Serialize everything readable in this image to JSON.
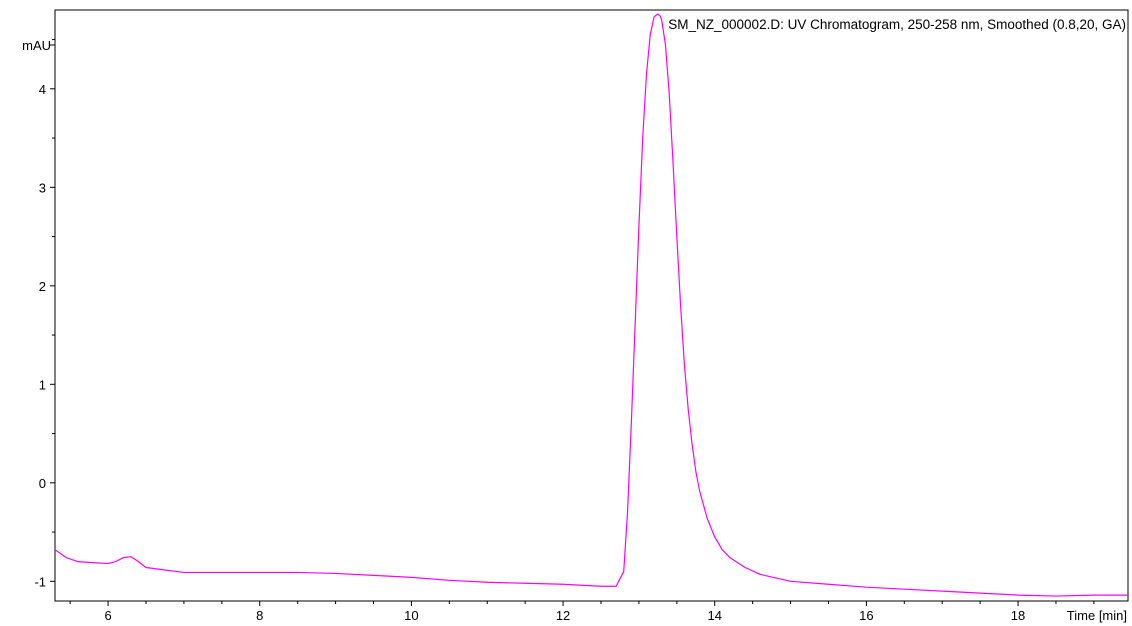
{
  "chart_data": {
    "type": "line",
    "title": "SM_NZ_000002.D: UV Chromatogram, 250-258 nm, Smoothed (0.8,20, GA)",
    "xlabel": "Time [min]",
    "ylabel": "mAU",
    "xlim": [
      5.3,
      19.45
    ],
    "ylim": [
      -1.2,
      4.8
    ],
    "x_ticks": [
      6,
      8,
      10,
      12,
      14,
      16,
      18
    ],
    "y_ticks": [
      -1,
      0,
      1,
      2,
      3,
      4
    ],
    "line_color": "#ff00ff",
    "grid": false,
    "series": [
      {
        "x": [
          5.3,
          5.45,
          5.6,
          5.8,
          6.0,
          6.1,
          6.2,
          6.3,
          6.4,
          6.5,
          6.7,
          7.0,
          7.5,
          8.0,
          8.5,
          9.0,
          9.5,
          10.0,
          10.5,
          11.0,
          11.5,
          12.0,
          12.5,
          12.7,
          12.8,
          12.85,
          12.9,
          12.95,
          13.0,
          13.05,
          13.1,
          13.15,
          13.2,
          13.25,
          13.28,
          13.3,
          13.35,
          13.4,
          13.45,
          13.5,
          13.55,
          13.6,
          13.65,
          13.7,
          13.75,
          13.8,
          13.9,
          14.0,
          14.1,
          14.2,
          14.4,
          14.6,
          15.0,
          15.5,
          16.0,
          16.5,
          17.0,
          17.5,
          18.0,
          18.5,
          19.0,
          19.45
        ],
        "y": [
          -0.68,
          -0.76,
          -0.8,
          -0.81,
          -0.82,
          -0.8,
          -0.76,
          -0.75,
          -0.8,
          -0.86,
          -0.88,
          -0.91,
          -0.91,
          -0.91,
          -0.91,
          -0.92,
          -0.94,
          -0.96,
          -0.99,
          -1.01,
          -1.02,
          -1.03,
          -1.05,
          -1.05,
          -0.9,
          -0.3,
          0.6,
          1.6,
          2.6,
          3.5,
          4.15,
          4.55,
          4.73,
          4.76,
          4.74,
          4.7,
          4.45,
          3.95,
          3.25,
          2.5,
          1.8,
          1.2,
          0.75,
          0.4,
          0.12,
          -0.08,
          -0.36,
          -0.55,
          -0.68,
          -0.76,
          -0.86,
          -0.93,
          -1.0,
          -1.03,
          -1.06,
          -1.08,
          -1.1,
          -1.12,
          -1.14,
          -1.15,
          -1.14,
          -1.14
        ]
      }
    ]
  }
}
